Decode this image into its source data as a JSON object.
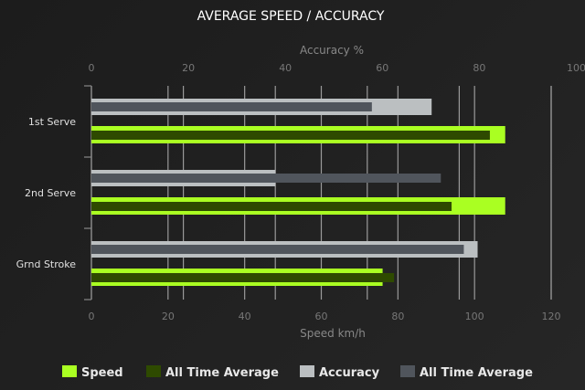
{
  "chart_data": {
    "type": "bar",
    "orientation": "horizontal",
    "title": "AVERAGE SPEED / ACCURACY",
    "categories": [
      "1st Serve",
      "2nd Serve",
      "Grnd Stroke"
    ],
    "x_bottom": {
      "label": "Speed km/h",
      "range": [
        0,
        120
      ],
      "ticks": [
        0,
        20,
        40,
        60,
        80,
        100,
        120
      ]
    },
    "x_top": {
      "label": "Accuracy %",
      "range": [
        0,
        100
      ],
      "ticks": [
        0,
        20,
        40,
        60,
        80,
        100
      ]
    },
    "grid": true,
    "legend_placement": "bottom",
    "series": [
      {
        "name": "Speed",
        "axis": "speed",
        "color": "#aaff22",
        "values": [
          108,
          108,
          76
        ]
      },
      {
        "name": "All Time Average",
        "axis": "speed",
        "color": "#2e4a00",
        "values": [
          104,
          94,
          79
        ]
      },
      {
        "name": "Accuracy",
        "axis": "accuracy",
        "color": "#bbbfc1",
        "values": [
          74,
          40,
          84
        ]
      },
      {
        "name": "All Time Average",
        "axis": "accuracy",
        "color": "#50555c",
        "values": [
          61,
          76,
          81
        ]
      }
    ]
  }
}
